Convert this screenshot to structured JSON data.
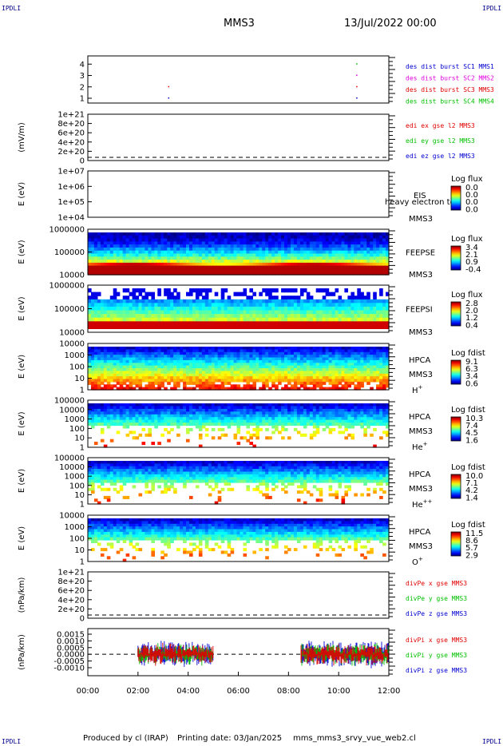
{
  "header": {
    "corner_tl": "IPDLI",
    "corner_tr": "IPDLI",
    "corner_bl": "IPDLI",
    "corner_br": "IPDLI",
    "spacecraft": "MMS3",
    "date": "13/Jul/2022 00:00"
  },
  "footer": {
    "produced_by": "Produced by cl (IRAP)",
    "printing_date": "Printing date: 03/Jan/2025",
    "filename": "mms_mms3_srvy_vue_web2.cl"
  },
  "colors": {
    "red": "#e00000",
    "green": "#00c000",
    "blue": "#0000d0",
    "magenta": "#e000e0"
  },
  "chart_data": [
    {
      "type": "scatter",
      "panel": "burst",
      "ylim": [
        0.5,
        4.5
      ],
      "yticks": [
        "1",
        "2",
        "3",
        "4"
      ],
      "series": [
        {
          "name": "des dist burst SC1 MMS1",
          "color": "#0000d0",
          "points": [
            [
              3.2,
              1
            ],
            [
              10.7,
              1
            ]
          ]
        },
        {
          "name": "des dist burst SC2 MMS2",
          "color": "#e000e0",
          "points": [
            [
              10.7,
              3
            ]
          ]
        },
        {
          "name": "des dist burst SC3 MMS3",
          "color": "#e00000",
          "points": [
            [
              3.2,
              2
            ],
            [
              10.7,
              2
            ]
          ]
        },
        {
          "name": "des dist burst SC4 MMS4",
          "color": "#00c000",
          "points": [
            [
              10.7,
              4
            ]
          ]
        }
      ]
    },
    {
      "type": "line",
      "panel": "edi",
      "ylabel": "(mV/m)",
      "yticks": [
        "1e+21",
        "8e+20",
        "6e+20",
        "4e+20",
        "2e+20",
        "0"
      ],
      "series": [
        {
          "name": "edi ex gse l2 MMS3",
          "color": "#e00000"
        },
        {
          "name": "edi ey gse l2 MMS3",
          "color": "#00c000"
        },
        {
          "name": "edi ez gse l2 MMS3",
          "color": "#0000d0"
        }
      ]
    },
    {
      "type": "heatmap",
      "panel": "eis",
      "ylabel": "E (eV)",
      "yticks": [
        "1e+07",
        "1e+06",
        "1e+05",
        "1e+04"
      ],
      "instrument": "EIS",
      "sc": "MMS3",
      "overlay": "heavy electron to",
      "cbar_title": "Log flux",
      "cbar_ticks": [
        "0.0",
        "0.0",
        "0.0",
        "0.0"
      ]
    },
    {
      "type": "heatmap",
      "panel": "feepse",
      "ylabel": "E (eV)",
      "yticks": [
        "1000000",
        "100000",
        "10000"
      ],
      "instrument": "FEEPSE",
      "sc": "MMS3",
      "cbar_title": "Log flux",
      "cbar_ticks": [
        "3.4",
        "2.1",
        "0.9",
        "-0.4"
      ]
    },
    {
      "type": "heatmap",
      "panel": "feepsi",
      "ylabel": "E (eV)",
      "yticks": [
        "1000000",
        "100000",
        "10000"
      ],
      "instrument": "FEEPSI",
      "sc": "MMS3",
      "cbar_title": "Log flux",
      "cbar_ticks": [
        "2.8",
        "2.0",
        "1.2",
        "0.4"
      ]
    },
    {
      "type": "heatmap",
      "panel": "hpca_h",
      "ylabel": "E (eV)",
      "yticks": [
        "10000",
        "1000",
        "100",
        "10",
        "1"
      ],
      "instrument": "HPCA",
      "sc": "MMS3",
      "species": "H",
      "species_sup": "+",
      "cbar_title": "Log fdist",
      "cbar_ticks": [
        "9.1",
        "6.3",
        "3.4",
        "0.6"
      ]
    },
    {
      "type": "heatmap",
      "panel": "hpca_he",
      "ylabel": "E (eV)",
      "yticks": [
        "100000",
        "10000",
        "1000",
        "100",
        "10",
        "1"
      ],
      "instrument": "HPCA",
      "sc": "MMS3",
      "species": "He",
      "species_sup": "+",
      "cbar_title": "Log fdist",
      "cbar_ticks": [
        "10.3",
        "7.4",
        "4.5",
        "1.6"
      ]
    },
    {
      "type": "heatmap",
      "panel": "hpca_he2",
      "ylabel": "E (eV)",
      "yticks": [
        "100000",
        "10000",
        "1000",
        "100",
        "10",
        "1"
      ],
      "instrument": "HPCA",
      "sc": "MMS3",
      "species": "He",
      "species_sup": "++",
      "cbar_title": "Log fdist",
      "cbar_ticks": [
        "10.0",
        "7.1",
        "4.2",
        "1.4"
      ]
    },
    {
      "type": "heatmap",
      "panel": "hpca_o",
      "ylabel": "E (eV)",
      "yticks": [
        "10000",
        "1000",
        "100",
        "10",
        "1"
      ],
      "instrument": "HPCA",
      "sc": "MMS3",
      "species": "O",
      "species_sup": "+",
      "cbar_title": "Log fdist",
      "cbar_ticks": [
        "11.5",
        "8.6",
        "5.7",
        "2.9"
      ]
    },
    {
      "type": "line",
      "panel": "divpe",
      "ylabel": "(nPa/km)",
      "yticks": [
        "1e+21",
        "8e+20",
        "6e+20",
        "4e+20",
        "2e+20",
        "0"
      ],
      "series": [
        {
          "name": "divPe x gse MMS3",
          "color": "#e00000"
        },
        {
          "name": "divPe y gse MMS3",
          "color": "#00c000"
        },
        {
          "name": "divPe z gse MMS3",
          "color": "#0000d0"
        }
      ]
    },
    {
      "type": "line",
      "panel": "divpi",
      "ylabel": "(nPa/km)",
      "yticks": [
        "0.0015",
        "0.0010",
        "0.0005",
        "0.0000",
        "-0.0005",
        "-0.0010"
      ],
      "ylim": [
        -0.0013,
        0.0017
      ],
      "data_intervals_hours": [
        [
          2.0,
          5.0
        ],
        [
          8.5,
          12.0
        ]
      ],
      "series": [
        {
          "name": "divPi x gse MMS3",
          "color": "#e00000"
        },
        {
          "name": "divPi y gse MMS3",
          "color": "#00c000"
        },
        {
          "name": "divPi z gse MMS3",
          "color": "#0000d0"
        }
      ]
    }
  ],
  "xaxis": {
    "xlim": [
      0,
      12
    ],
    "ticks": [
      "00:00",
      "02:00",
      "04:00",
      "06:00",
      "08:00",
      "10:00",
      "12:00"
    ]
  }
}
